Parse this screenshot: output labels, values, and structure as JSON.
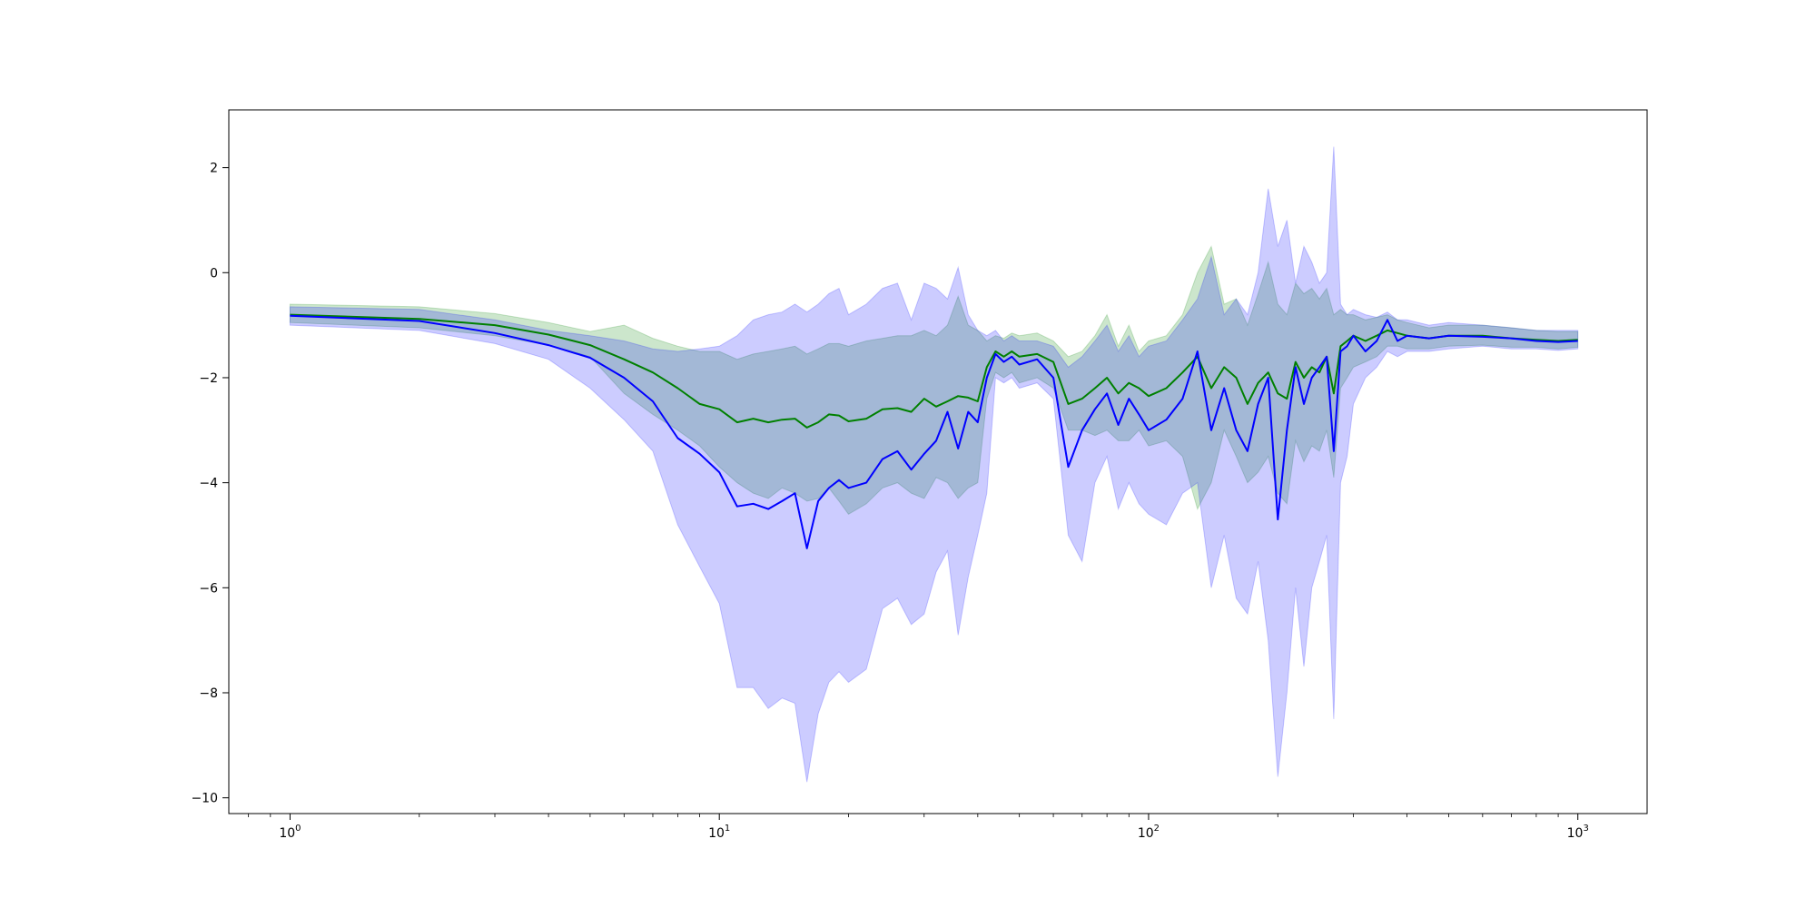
{
  "chart_data": {
    "type": "line",
    "title": "",
    "xlabel": "",
    "ylabel": "",
    "x_scale": "log",
    "xlim": [
      0.72,
      1450
    ],
    "ylim": [
      -10.3,
      3.1
    ],
    "grid": false,
    "legend": "none",
    "x_ticks": [
      {
        "value": 1,
        "base": "10",
        "exp": "0"
      },
      {
        "value": 10,
        "base": "10",
        "exp": "1"
      },
      {
        "value": 100,
        "base": "10",
        "exp": "2"
      },
      {
        "value": 1000,
        "base": "10",
        "exp": "3"
      }
    ],
    "y_ticks": [
      {
        "value": 2,
        "label": "2"
      },
      {
        "value": 0,
        "label": "0"
      },
      {
        "value": -2,
        "label": "−2"
      },
      {
        "value": -4,
        "label": "−4"
      },
      {
        "value": -6,
        "label": "−6"
      },
      {
        "value": -8,
        "label": "−8"
      },
      {
        "value": -10,
        "label": "−10"
      }
    ],
    "series": [
      {
        "color": "#008000",
        "band_color": "#008000",
        "band_opacity": 0.2,
        "x": [
          1,
          2,
          3,
          4,
          5,
          6,
          7,
          8,
          9,
          10,
          11,
          12,
          13,
          14,
          15,
          16,
          17,
          18,
          19,
          20,
          22,
          24,
          26,
          28,
          30,
          32,
          34,
          36,
          38,
          40,
          42,
          44,
          46,
          48,
          50,
          55,
          60,
          65,
          70,
          75,
          80,
          85,
          90,
          95,
          100,
          110,
          120,
          130,
          140,
          150,
          160,
          170,
          180,
          190,
          200,
          210,
          220,
          230,
          240,
          250,
          260,
          270,
          280,
          290,
          300,
          320,
          340,
          360,
          380,
          400,
          450,
          500,
          600,
          700,
          800,
          900,
          1000
        ],
        "y": [
          -0.8,
          -0.88,
          -1.0,
          -1.18,
          -1.38,
          -1.65,
          -1.9,
          -2.2,
          -2.5,
          -2.6,
          -2.85,
          -2.78,
          -2.85,
          -2.8,
          -2.78,
          -2.95,
          -2.85,
          -2.7,
          -2.72,
          -2.83,
          -2.78,
          -2.6,
          -2.58,
          -2.65,
          -2.4,
          -2.55,
          -2.45,
          -2.35,
          -2.38,
          -2.45,
          -1.8,
          -1.5,
          -1.6,
          -1.5,
          -1.6,
          -1.55,
          -1.7,
          -2.5,
          -2.4,
          -2.2,
          -2.0,
          -2.3,
          -2.1,
          -2.2,
          -2.35,
          -2.2,
          -1.9,
          -1.6,
          -2.2,
          -1.8,
          -2.0,
          -2.5,
          -2.1,
          -1.9,
          -2.3,
          -2.4,
          -1.7,
          -2.0,
          -1.8,
          -1.9,
          -1.6,
          -2.3,
          -1.4,
          -1.3,
          -1.2,
          -1.3,
          -1.2,
          -1.1,
          -1.15,
          -1.2,
          -1.25,
          -1.2,
          -1.2,
          -1.25,
          -1.28,
          -1.3,
          -1.28
        ],
        "lower": [
          -0.95,
          -1.05,
          -1.2,
          -1.38,
          -1.6,
          -2.3,
          -2.7,
          -3.0,
          -3.3,
          -3.7,
          -4.0,
          -4.2,
          -4.3,
          -4.1,
          -4.2,
          -4.35,
          -4.3,
          -4.1,
          -4.35,
          -4.6,
          -4.4,
          -4.1,
          -4.0,
          -4.2,
          -4.3,
          -3.9,
          -4.0,
          -4.3,
          -4.1,
          -4.0,
          -2.4,
          -1.9,
          -2.0,
          -1.9,
          -2.1,
          -2.0,
          -2.2,
          -3.0,
          -3.0,
          -3.1,
          -3.0,
          -3.2,
          -3.2,
          -3.0,
          -3.3,
          -3.2,
          -3.5,
          -4.5,
          -4.0,
          -3.0,
          -3.5,
          -4.0,
          -3.8,
          -3.5,
          -4.2,
          -4.4,
          -3.2,
          -3.6,
          -3.3,
          -3.4,
          -3.0,
          -3.9,
          -2.2,
          -2.0,
          -1.8,
          -1.7,
          -1.6,
          -1.4,
          -1.4,
          -1.45,
          -1.45,
          -1.4,
          -1.38,
          -1.42,
          -1.42,
          -1.45,
          -1.42
        ],
        "upper": [
          -0.6,
          -0.65,
          -0.78,
          -0.95,
          -1.12,
          -1.0,
          -1.25,
          -1.4,
          -1.5,
          -1.5,
          -1.65,
          -1.55,
          -1.5,
          -1.45,
          -1.4,
          -1.55,
          -1.45,
          -1.35,
          -1.35,
          -1.4,
          -1.3,
          -1.25,
          -1.2,
          -1.2,
          -1.1,
          -1.2,
          -1.0,
          -0.45,
          -1.0,
          -1.1,
          -1.3,
          -1.2,
          -1.25,
          -1.15,
          -1.2,
          -1.15,
          -1.3,
          -1.6,
          -1.5,
          -1.2,
          -0.8,
          -1.4,
          -1.0,
          -1.5,
          -1.3,
          -1.2,
          -0.8,
          0.0,
          0.5,
          -0.6,
          -0.5,
          -1.0,
          -0.4,
          0.2,
          -0.6,
          -0.8,
          -0.2,
          -0.4,
          -0.3,
          -0.5,
          -0.3,
          -0.8,
          -0.7,
          -0.8,
          -0.8,
          -0.9,
          -0.85,
          -0.8,
          -0.9,
          -0.95,
          -1.05,
          -1.0,
          -1.0,
          -1.05,
          -1.1,
          -1.12,
          -1.12
        ]
      },
      {
        "color": "#0000ff",
        "band_color": "#0000ff",
        "band_opacity": 0.2,
        "x": [
          1,
          2,
          3,
          4,
          5,
          6,
          7,
          8,
          9,
          10,
          11,
          12,
          13,
          14,
          15,
          16,
          17,
          18,
          19,
          20,
          22,
          24,
          26,
          28,
          30,
          32,
          34,
          36,
          38,
          40,
          42,
          44,
          46,
          48,
          50,
          55,
          60,
          65,
          70,
          75,
          80,
          85,
          90,
          95,
          100,
          110,
          120,
          130,
          140,
          150,
          160,
          170,
          180,
          190,
          200,
          210,
          220,
          230,
          240,
          250,
          260,
          270,
          280,
          290,
          300,
          320,
          340,
          360,
          380,
          400,
          450,
          500,
          600,
          700,
          800,
          900,
          1000
        ],
        "y": [
          -0.82,
          -0.92,
          -1.15,
          -1.38,
          -1.62,
          -2.0,
          -2.45,
          -3.15,
          -3.45,
          -3.8,
          -4.45,
          -4.4,
          -4.5,
          -4.35,
          -4.2,
          -5.25,
          -4.35,
          -4.1,
          -3.95,
          -4.1,
          -4.0,
          -3.55,
          -3.4,
          -3.75,
          -3.45,
          -3.2,
          -2.65,
          -3.35,
          -2.65,
          -2.85,
          -2.0,
          -1.55,
          -1.7,
          -1.6,
          -1.75,
          -1.65,
          -2.0,
          -3.7,
          -3.0,
          -2.6,
          -2.3,
          -2.9,
          -2.4,
          -2.7,
          -3.0,
          -2.8,
          -2.4,
          -1.5,
          -3.0,
          -2.2,
          -3.0,
          -3.4,
          -2.5,
          -2.0,
          -4.7,
          -3.0,
          -1.8,
          -2.5,
          -2.0,
          -1.8,
          -1.6,
          -3.4,
          -1.5,
          -1.4,
          -1.2,
          -1.5,
          -1.3,
          -0.9,
          -1.3,
          -1.2,
          -1.25,
          -1.2,
          -1.22,
          -1.25,
          -1.3,
          -1.32,
          -1.3
        ],
        "lower": [
          -1.0,
          -1.1,
          -1.35,
          -1.65,
          -2.2,
          -2.8,
          -3.4,
          -4.8,
          -5.6,
          -6.3,
          -7.9,
          -7.9,
          -8.3,
          -8.1,
          -8.2,
          -9.7,
          -8.4,
          -7.8,
          -7.6,
          -7.8,
          -7.55,
          -6.4,
          -6.2,
          -6.7,
          -6.5,
          -5.7,
          -5.3,
          -6.9,
          -5.8,
          -5.0,
          -4.2,
          -2.0,
          -2.1,
          -2.0,
          -2.2,
          -2.1,
          -2.4,
          -5.0,
          -5.5,
          -4.0,
          -3.5,
          -4.5,
          -4.0,
          -4.4,
          -4.6,
          -4.8,
          -4.2,
          -4.0,
          -6.0,
          -5.0,
          -6.2,
          -6.5,
          -5.5,
          -7.0,
          -9.6,
          -8.0,
          -6.0,
          -7.5,
          -6.0,
          -5.5,
          -5.0,
          -8.5,
          -4.0,
          -3.5,
          -2.5,
          -2.0,
          -1.8,
          -1.5,
          -1.6,
          -1.5,
          -1.5,
          -1.45,
          -1.4,
          -1.45,
          -1.45,
          -1.48,
          -1.45
        ],
        "upper": [
          -0.65,
          -0.7,
          -0.9,
          -1.1,
          -1.2,
          -1.3,
          -1.45,
          -1.5,
          -1.45,
          -1.4,
          -1.2,
          -0.9,
          -0.8,
          -0.75,
          -0.6,
          -0.75,
          -0.6,
          -0.4,
          -0.3,
          -0.8,
          -0.6,
          -0.3,
          -0.2,
          -0.9,
          -0.2,
          -0.3,
          -0.5,
          0.1,
          -0.8,
          -1.1,
          -1.2,
          -1.1,
          -1.3,
          -1.2,
          -1.3,
          -1.3,
          -1.4,
          -1.8,
          -1.6,
          -1.3,
          -1.0,
          -1.5,
          -1.2,
          -1.6,
          -1.4,
          -1.3,
          -0.9,
          -0.5,
          0.3,
          -0.8,
          -0.5,
          -0.8,
          0.0,
          1.6,
          0.5,
          1.0,
          -0.2,
          0.5,
          0.2,
          -0.2,
          0.0,
          2.4,
          -0.6,
          -0.8,
          -0.7,
          -0.8,
          -0.85,
          -0.75,
          -0.9,
          -0.9,
          -1.0,
          -0.95,
          -1.0,
          -1.05,
          -1.1,
          -1.1,
          -1.1
        ]
      }
    ]
  }
}
